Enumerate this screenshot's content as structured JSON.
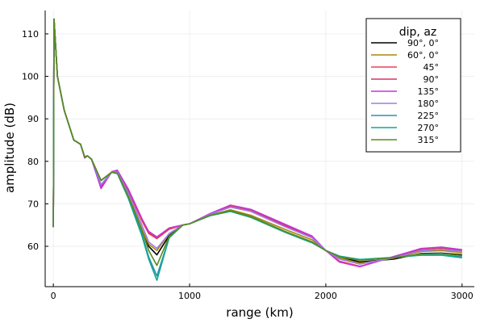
{
  "chart_data": {
    "type": "line",
    "xlabel": "range (km)",
    "ylabel": "amplitude (dB)",
    "xlim": [
      -60,
      3090
    ],
    "ylim": [
      50.5,
      115.5
    ],
    "x_ticks": [
      0,
      1000,
      2000,
      3000
    ],
    "y_ticks": [
      60,
      70,
      80,
      90,
      100,
      110
    ],
    "grid": true,
    "legend_position": "top-right",
    "legend_title": "dip, az",
    "series": [
      {
        "name": "90°, 0°",
        "color": "#000000",
        "points": [
          [
            0,
            64.5
          ],
          [
            5,
            113.5
          ],
          [
            30,
            100
          ],
          [
            80,
            92
          ],
          [
            150,
            85
          ],
          [
            200,
            84
          ],
          [
            230,
            81
          ],
          [
            250,
            81.3
          ],
          [
            280,
            80.5
          ],
          [
            350,
            75.5
          ],
          [
            430,
            77.5
          ],
          [
            470,
            77.3
          ],
          [
            550,
            72
          ],
          [
            650,
            64
          ],
          [
            700,
            60
          ],
          [
            760,
            58
          ],
          [
            850,
            62.5
          ],
          [
            950,
            65
          ],
          [
            1000,
            65.3
          ],
          [
            1150,
            67.3
          ],
          [
            1300,
            68.5
          ],
          [
            1450,
            67
          ],
          [
            1700,
            63.5
          ],
          [
            1900,
            61
          ],
          [
            2000,
            59
          ],
          [
            2100,
            57.5
          ],
          [
            2250,
            56.3
          ],
          [
            2500,
            57
          ],
          [
            2700,
            58.3
          ],
          [
            2850,
            58.4
          ],
          [
            3000,
            58
          ]
        ]
      },
      {
        "name": "60°, 0°",
        "color": "#a8860f",
        "points": [
          [
            0,
            64.5
          ],
          [
            5,
            113.5
          ],
          [
            30,
            100
          ],
          [
            80,
            92
          ],
          [
            150,
            85
          ],
          [
            200,
            84
          ],
          [
            230,
            81
          ],
          [
            250,
            81.3
          ],
          [
            280,
            80.5
          ],
          [
            350,
            75.5
          ],
          [
            430,
            77.5
          ],
          [
            470,
            77.3
          ],
          [
            550,
            72
          ],
          [
            650,
            64
          ],
          [
            700,
            60.5
          ],
          [
            760,
            59
          ],
          [
            850,
            63
          ],
          [
            950,
            65
          ],
          [
            1000,
            65.3
          ],
          [
            1150,
            67.3
          ],
          [
            1300,
            68.6
          ],
          [
            1450,
            67.3
          ],
          [
            1700,
            64
          ],
          [
            1900,
            61.5
          ],
          [
            2000,
            59
          ],
          [
            2100,
            57.3
          ],
          [
            2250,
            56
          ],
          [
            2500,
            57.2
          ],
          [
            2700,
            58.8
          ],
          [
            2850,
            59
          ],
          [
            3000,
            58.5
          ]
        ]
      },
      {
        "name": "45°",
        "color": "#e8424e",
        "points": [
          [
            0,
            64.5
          ],
          [
            5,
            113.5
          ],
          [
            30,
            100
          ],
          [
            80,
            92
          ],
          [
            150,
            85
          ],
          [
            200,
            84
          ],
          [
            230,
            81
          ],
          [
            250,
            81.3
          ],
          [
            280,
            80.5
          ],
          [
            350,
            74.5
          ],
          [
            430,
            77.5
          ],
          [
            470,
            77.6
          ],
          [
            550,
            73
          ],
          [
            650,
            66
          ],
          [
            700,
            63
          ],
          [
            760,
            61.8
          ],
          [
            850,
            64
          ],
          [
            950,
            65
          ],
          [
            1000,
            65.3
          ],
          [
            1150,
            67.5
          ],
          [
            1300,
            69.3
          ],
          [
            1450,
            68.3
          ],
          [
            1700,
            64.8
          ],
          [
            1900,
            62
          ],
          [
            2000,
            59
          ],
          [
            2100,
            56.5
          ],
          [
            2250,
            55.3
          ],
          [
            2500,
            57.5
          ],
          [
            2700,
            59.3
          ],
          [
            2850,
            59.6
          ],
          [
            3000,
            59
          ]
        ]
      },
      {
        "name": "90°",
        "color": "#d6336c",
        "points": [
          [
            0,
            64.5
          ],
          [
            5,
            113.5
          ],
          [
            30,
            100
          ],
          [
            80,
            92
          ],
          [
            150,
            85
          ],
          [
            200,
            84
          ],
          [
            230,
            80.8
          ],
          [
            250,
            81.3
          ],
          [
            280,
            80.5
          ],
          [
            350,
            74
          ],
          [
            430,
            77.6
          ],
          [
            470,
            77.8
          ],
          [
            550,
            73.3
          ],
          [
            650,
            66.5
          ],
          [
            700,
            63.3
          ],
          [
            760,
            62
          ],
          [
            850,
            64.3
          ],
          [
            950,
            65
          ],
          [
            1000,
            65.3
          ],
          [
            1150,
            67.6
          ],
          [
            1300,
            69.6
          ],
          [
            1450,
            68.6
          ],
          [
            1700,
            65
          ],
          [
            1900,
            62.2
          ],
          [
            2000,
            59
          ],
          [
            2100,
            56.3
          ],
          [
            2250,
            55.2
          ],
          [
            2500,
            57.6
          ],
          [
            2700,
            59.4
          ],
          [
            2850,
            59.7
          ],
          [
            3000,
            59.1
          ]
        ]
      },
      {
        "name": "135°",
        "color": "#c536d6",
        "points": [
          [
            0,
            64.5
          ],
          [
            5,
            113.5
          ],
          [
            30,
            100
          ],
          [
            80,
            92
          ],
          [
            150,
            85
          ],
          [
            200,
            84
          ],
          [
            230,
            80.8
          ],
          [
            250,
            81.3
          ],
          [
            280,
            80.5
          ],
          [
            350,
            73.6
          ],
          [
            430,
            77.6
          ],
          [
            470,
            77.9
          ],
          [
            550,
            73.5
          ],
          [
            650,
            66.5
          ],
          [
            700,
            63.5
          ],
          [
            760,
            62.2
          ],
          [
            850,
            64.3
          ],
          [
            950,
            65
          ],
          [
            1000,
            65.3
          ],
          [
            1150,
            67.7
          ],
          [
            1300,
            69.7
          ],
          [
            1450,
            68.7
          ],
          [
            1700,
            65.2
          ],
          [
            1900,
            62.4
          ],
          [
            2000,
            59
          ],
          [
            2100,
            56.3
          ],
          [
            2250,
            55.2
          ],
          [
            2500,
            57.6
          ],
          [
            2700,
            59.5
          ],
          [
            2850,
            59.8
          ],
          [
            3000,
            59.2
          ]
        ]
      },
      {
        "name": "180°",
        "color": "#9b7de8",
        "points": [
          [
            0,
            64.5
          ],
          [
            5,
            113.5
          ],
          [
            30,
            100
          ],
          [
            80,
            92
          ],
          [
            150,
            85
          ],
          [
            200,
            84
          ],
          [
            230,
            81
          ],
          [
            250,
            81.3
          ],
          [
            280,
            80.5
          ],
          [
            350,
            74.5
          ],
          [
            430,
            77.5
          ],
          [
            470,
            77.5
          ],
          [
            550,
            72.5
          ],
          [
            650,
            65
          ],
          [
            700,
            61
          ],
          [
            760,
            59.5
          ],
          [
            850,
            63
          ],
          [
            950,
            65
          ],
          [
            1000,
            65.3
          ],
          [
            1150,
            67.5
          ],
          [
            1300,
            69.2
          ],
          [
            1450,
            68.2
          ],
          [
            1700,
            64.6
          ],
          [
            1900,
            62
          ],
          [
            2000,
            59
          ],
          [
            2100,
            57
          ],
          [
            2250,
            55.8
          ],
          [
            2500,
            57.3
          ],
          [
            2700,
            59
          ],
          [
            2850,
            59.3
          ],
          [
            3000,
            58.8
          ]
        ]
      },
      {
        "name": "225°",
        "color": "#2d8fb8",
        "points": [
          [
            0,
            64.5
          ],
          [
            5,
            113.5
          ],
          [
            30,
            100
          ],
          [
            80,
            92
          ],
          [
            150,
            85
          ],
          [
            200,
            84
          ],
          [
            230,
            81
          ],
          [
            250,
            81.3
          ],
          [
            280,
            80.5
          ],
          [
            350,
            75.5
          ],
          [
            430,
            77.4
          ],
          [
            470,
            77.2
          ],
          [
            550,
            71.5
          ],
          [
            650,
            63
          ],
          [
            700,
            57.5
          ],
          [
            760,
            53
          ],
          [
            850,
            62
          ],
          [
            950,
            65
          ],
          [
            1000,
            65.3
          ],
          [
            1150,
            67.2
          ],
          [
            1300,
            68.3
          ],
          [
            1450,
            67
          ],
          [
            1700,
            63.5
          ],
          [
            1900,
            61
          ],
          [
            2000,
            59
          ],
          [
            2100,
            57.6
          ],
          [
            2250,
            56.8
          ],
          [
            2500,
            57.3
          ],
          [
            2700,
            58
          ],
          [
            2850,
            58
          ],
          [
            3000,
            57.5
          ]
        ]
      },
      {
        "name": "270°",
        "color": "#0fa88c",
        "points": [
          [
            0,
            64.5
          ],
          [
            5,
            113.5
          ],
          [
            30,
            100
          ],
          [
            80,
            92
          ],
          [
            150,
            85
          ],
          [
            200,
            84
          ],
          [
            230,
            81
          ],
          [
            250,
            81.3
          ],
          [
            280,
            80.5
          ],
          [
            350,
            75.5
          ],
          [
            430,
            77.4
          ],
          [
            470,
            77.1
          ],
          [
            550,
            71.3
          ],
          [
            650,
            62.5
          ],
          [
            700,
            57
          ],
          [
            760,
            52
          ],
          [
            850,
            62
          ],
          [
            950,
            65
          ],
          [
            1000,
            65.3
          ],
          [
            1150,
            67.2
          ],
          [
            1300,
            68.2
          ],
          [
            1450,
            66.8
          ],
          [
            1700,
            63.3
          ],
          [
            1900,
            60.8
          ],
          [
            2000,
            59
          ],
          [
            2100,
            57.7
          ],
          [
            2250,
            56.9
          ],
          [
            2500,
            57.4
          ],
          [
            2700,
            57.9
          ],
          [
            2850,
            57.9
          ],
          [
            3000,
            57.3
          ]
        ]
      },
      {
        "name": "315°",
        "color": "#5c8a1c",
        "points": [
          [
            0,
            64.5
          ],
          [
            5,
            113.5
          ],
          [
            30,
            100
          ],
          [
            80,
            92
          ],
          [
            150,
            85
          ],
          [
            200,
            84
          ],
          [
            230,
            81
          ],
          [
            250,
            81.3
          ],
          [
            280,
            80.5
          ],
          [
            350,
            75.5
          ],
          [
            430,
            77.4
          ],
          [
            470,
            77.2
          ],
          [
            550,
            71.8
          ],
          [
            650,
            63.8
          ],
          [
            700,
            59
          ],
          [
            760,
            55.5
          ],
          [
            850,
            62.3
          ],
          [
            950,
            65
          ],
          [
            1000,
            65.3
          ],
          [
            1150,
            67.3
          ],
          [
            1300,
            68.4
          ],
          [
            1450,
            67
          ],
          [
            1700,
            63.5
          ],
          [
            1900,
            61
          ],
          [
            2000,
            59
          ],
          [
            2100,
            57.5
          ],
          [
            2250,
            56.7
          ],
          [
            2500,
            57.3
          ],
          [
            2700,
            58.2
          ],
          [
            2850,
            58.3
          ],
          [
            3000,
            57.8
          ]
        ]
      }
    ]
  }
}
